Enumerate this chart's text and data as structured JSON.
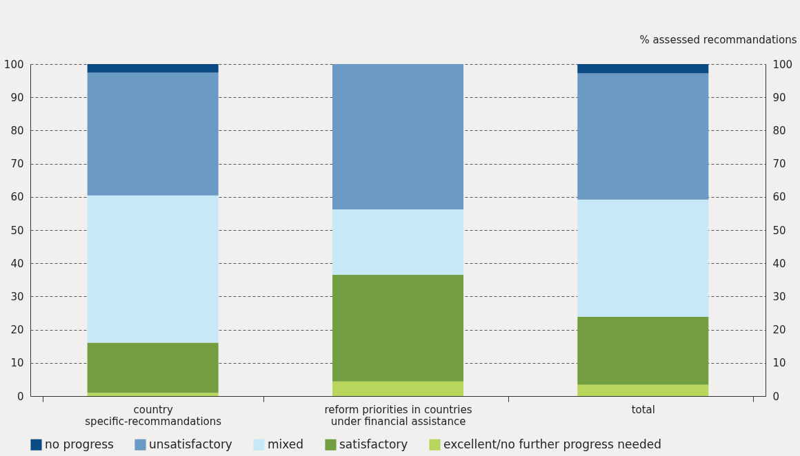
{
  "chart_data": {
    "type": "bar",
    "stacked": true,
    "y2label": "% assessed recommandations",
    "categories": [
      "country specific-recommandations",
      "reform priorities in countries under financial assistance",
      "total"
    ],
    "series": [
      {
        "name": "excellent/no further progress needed",
        "color": "#b8d65c",
        "values": [
          1.0,
          4.4,
          3.4
        ]
      },
      {
        "name": "satisfactory",
        "color": "#739e3f",
        "values": [
          15.1,
          32.1,
          20.5
        ]
      },
      {
        "name": "mixed",
        "color": "#c6e8f7",
        "values": [
          44.3,
          19.7,
          35.3
        ]
      },
      {
        "name": "unsatisfactory",
        "color": "#6b9ac4",
        "values": [
          37.0,
          43.8,
          38.0
        ]
      },
      {
        "name": "no progress",
        "color": "#0b4a84",
        "values": [
          2.6,
          0,
          2.8
        ]
      }
    ],
    "ylim": [
      0,
      100
    ],
    "yticks": [
      0,
      10,
      20,
      30,
      40,
      50,
      60,
      70,
      80,
      90,
      100
    ],
    "y2lim": [
      0,
      100
    ],
    "y2ticks": [
      0,
      10,
      20,
      30,
      40,
      50,
      60,
      70,
      80,
      90,
      100
    ],
    "grid": "y",
    "line_style": "dashed",
    "legend": "bottom"
  }
}
